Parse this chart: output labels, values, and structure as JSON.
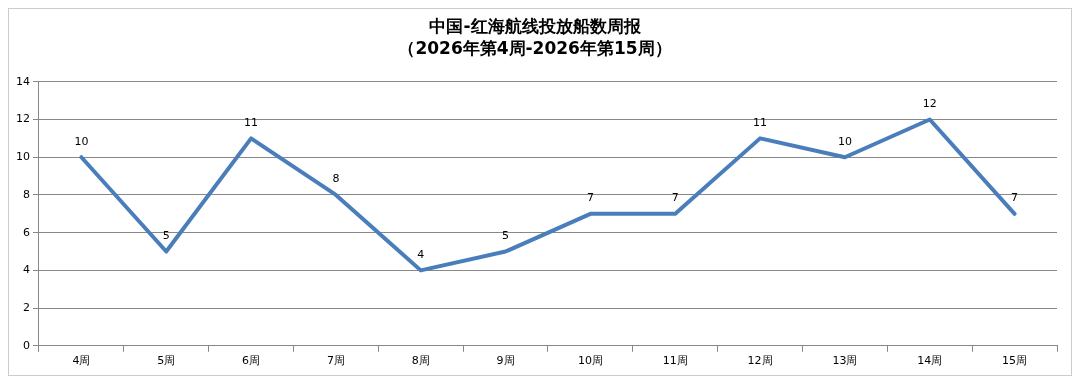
{
  "chart_data": {
    "type": "line",
    "title": "中国-红海航线投放船数周报",
    "subtitle": "（2026年第4周-2026年第15周）",
    "categories": [
      "4周",
      "5周",
      "6周",
      "7周",
      "8周",
      "9周",
      "10周",
      "11周",
      "12周",
      "13周",
      "14周",
      "15周"
    ],
    "series": [
      {
        "color": "#4a7ebb",
        "values": [
          10,
          5,
          11,
          8,
          4,
          5,
          7,
          7,
          11,
          10,
          12,
          7
        ]
      }
    ],
    "ylim": [
      0,
      14
    ],
    "yticks": [
      0,
      2,
      4,
      6,
      8,
      10,
      12,
      14
    ],
    "grid": "y",
    "legend": false,
    "marker": "none",
    "line_style": "solid",
    "data_labels": true
  }
}
